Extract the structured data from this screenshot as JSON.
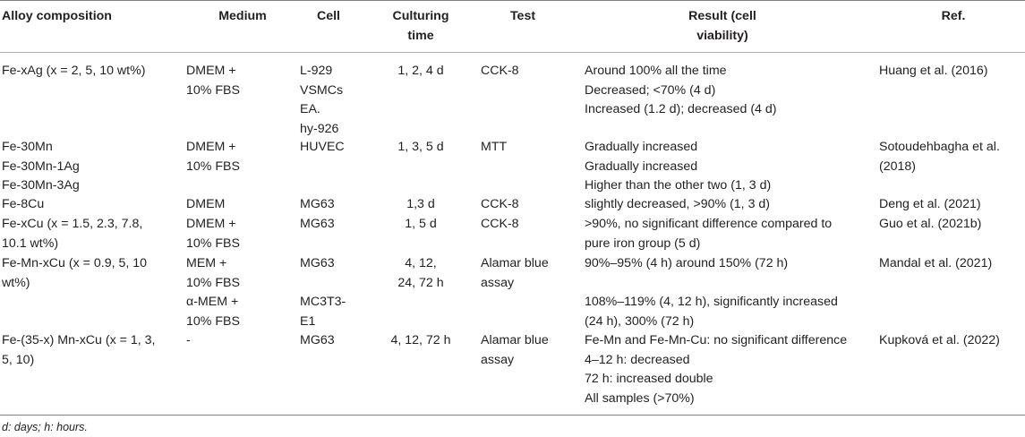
{
  "headers": {
    "alloy": "Alloy composition",
    "medium": "Medium",
    "cell": "Cell",
    "culturing": [
      "Culturing",
      "time"
    ],
    "test": "Test",
    "result": [
      "Result (cell",
      "viability)"
    ],
    "ref": "Ref."
  },
  "rows": [
    {
      "alloy": [
        "Fe-xAg (x = 2, 5, 10 wt%)"
      ],
      "medium": [
        "DMEM +",
        "10% FBS"
      ],
      "cell": [
        "L-929",
        "VSMCs",
        "EA.",
        "hy-926"
      ],
      "time": [
        "1, 2, 4 d"
      ],
      "test": [
        "CCK-8"
      ],
      "result": [
        "Around 100% all the time",
        "Decreased; <70% (4 d)",
        "Increased (1.2 d); decreased (4 d)"
      ],
      "ref": [
        "Huang et al. (2016)"
      ]
    },
    {
      "alloy": [
        "Fe-30Mn",
        "Fe-30Mn-1Ag",
        "Fe-30Mn-3Ag"
      ],
      "medium": [
        "DMEM +",
        "10% FBS"
      ],
      "cell": [
        "HUVEC"
      ],
      "time": [
        "1, 3, 5 d"
      ],
      "test": [
        "MTT"
      ],
      "result": [
        "Gradually increased",
        "Gradually increased",
        "Higher than the other two (1, 3 d)"
      ],
      "ref": [
        "Sotoudehbagha et al.",
        "(2018)"
      ]
    },
    {
      "alloy": [
        "Fe-8Cu"
      ],
      "medium": [
        "DMEM"
      ],
      "cell": [
        "MG63"
      ],
      "time": [
        "1,3 d"
      ],
      "test": [
        "CCK-8"
      ],
      "result": [
        "slightly decreased, >90% (1, 3 d)"
      ],
      "ref": [
        "Deng et al. (2021)"
      ]
    },
    {
      "alloy": [
        "Fe-xCu (x = 1.5, 2.3, 7.8,",
        "10.1 wt%)"
      ],
      "medium": [
        "DMEM +",
        "10% FBS"
      ],
      "cell": [
        "MG63"
      ],
      "time": [
        "1, 5 d"
      ],
      "test": [
        "CCK-8"
      ],
      "result": [
        ">90%, no significant difference compared to",
        "pure iron group (5 d)"
      ],
      "ref": [
        "Guo et al. (2021b)"
      ]
    },
    {
      "alloy": [
        "Fe-Mn-xCu (x = 0.9, 5, 10",
        "wt%)"
      ],
      "medium": [
        "MEM +",
        "10% FBS",
        "α-MEM +",
        "10% FBS"
      ],
      "cell": [
        "MG63",
        "",
        "MC3T3-",
        "E1"
      ],
      "time": [
        "4, 12,",
        "24, 72 h"
      ],
      "test": [
        "Alamar blue",
        "assay"
      ],
      "result": [
        "90%–95% (4 h) around 150% (72 h)",
        "",
        "108%–119% (4, 12 h), significantly increased",
        "(24 h), 300% (72 h)"
      ],
      "ref": [
        "Mandal et al. (2021)"
      ]
    },
    {
      "alloy": [
        "Fe-(35-x) Mn-xCu (x = 1, 3,",
        "5, 10)"
      ],
      "medium": [
        "-"
      ],
      "cell": [
        "MG63"
      ],
      "time": [
        "4, 12, 72 h"
      ],
      "test": [
        "Alamar blue",
        "assay"
      ],
      "result": [
        "Fe-Mn and Fe-Mn-Cu: no significant difference",
        "4–12 h: decreased",
        "72 h: increased double",
        "All samples (>70%)"
      ],
      "ref": [
        "Kupková et al. (2022)"
      ]
    }
  ],
  "footnote": "d: days; h: hours."
}
